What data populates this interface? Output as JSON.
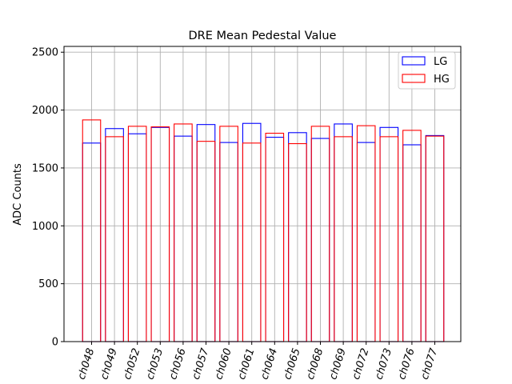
{
  "chart_data": {
    "type": "bar",
    "title": "DRE Mean Pedestal Value",
    "xlabel": "",
    "ylabel": "ADC Counts",
    "ylim": [
      0,
      2550
    ],
    "yticks": [
      0,
      500,
      1000,
      1500,
      2000,
      2500
    ],
    "grid": true,
    "legend_position": "top-right",
    "categories": [
      "ch048",
      "ch049",
      "ch052",
      "ch053",
      "ch056",
      "ch057",
      "ch060",
      "ch061",
      "ch064",
      "ch065",
      "ch068",
      "ch069",
      "ch072",
      "ch073",
      "ch076",
      "ch077"
    ],
    "series": [
      {
        "name": "LG",
        "color": "#0000ff",
        "values": [
          1715,
          1840,
          1795,
          1850,
          1775,
          1875,
          1720,
          1885,
          1765,
          1805,
          1755,
          1880,
          1720,
          1850,
          1700,
          1780
        ]
      },
      {
        "name": "HG",
        "color": "#ff0000",
        "values": [
          1915,
          1770,
          1860,
          1855,
          1880,
          1730,
          1860,
          1715,
          1800,
          1710,
          1860,
          1770,
          1865,
          1770,
          1825,
          1775
        ]
      }
    ]
  }
}
